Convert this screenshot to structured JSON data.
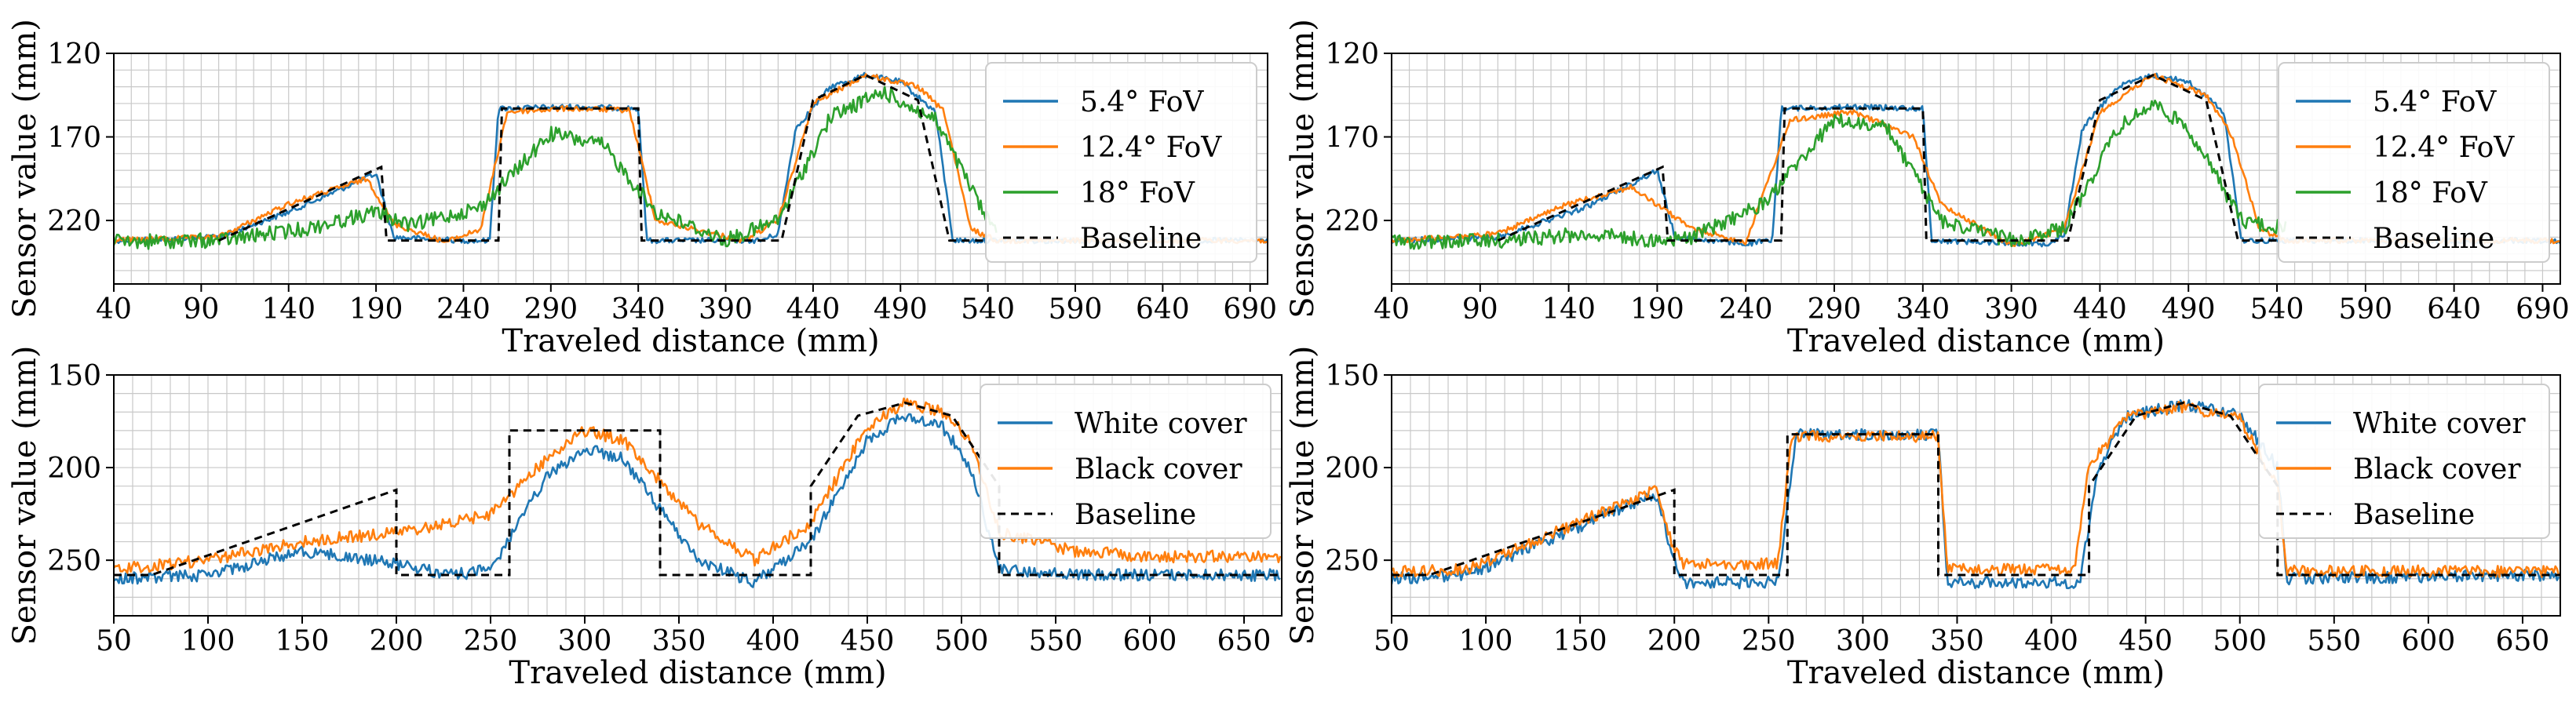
{
  "colors": {
    "blue": "#1f77b4",
    "orange": "#ff7f0e",
    "green": "#2ca02c",
    "baseline": "#000000",
    "grid": "#c8c8c8"
  },
  "chart_data": [
    {
      "type": "line",
      "xlabel": "Traveled distance (mm)",
      "ylabel": "Sensor value (mm)",
      "xlim": [
        40,
        700
      ],
      "ylim": [
        258,
        120
      ],
      "xticks": [
        "40",
        "90",
        "140",
        "190",
        "240",
        "290",
        "340",
        "390",
        "440",
        "490",
        "540",
        "590",
        "640",
        "690"
      ],
      "yticks": [
        "120",
        "170",
        "220"
      ],
      "legend": [
        "5.4° FoV",
        "12.4° FoV",
        "18° FoV",
        "Baseline"
      ],
      "series": [
        {
          "name": "5.4° FoV",
          "color": "#1f77b4",
          "x": [
            40,
            100,
            140,
            190,
            200,
            240,
            255,
            260,
            300,
            340,
            345,
            410,
            420,
            430,
            450,
            470,
            490,
            510,
            520,
            540,
            700
          ],
          "y": [
            232,
            230,
            215,
            192,
            230,
            232,
            232,
            153,
            152,
            153,
            232,
            232,
            228,
            165,
            140,
            133,
            137,
            155,
            232,
            232,
            232
          ]
        },
        {
          "name": "12.4° FoV",
          "color": "#ff7f0e",
          "x": [
            40,
            100,
            140,
            185,
            200,
            230,
            250,
            265,
            300,
            335,
            350,
            400,
            420,
            440,
            470,
            500,
            515,
            530,
            545,
            700
          ],
          "y": [
            232,
            230,
            210,
            195,
            222,
            233,
            225,
            155,
            153,
            154,
            220,
            232,
            220,
            150,
            133,
            140,
            155,
            225,
            232,
            232
          ]
        },
        {
          "name": "18° FoV",
          "color": "#2ca02c",
          "x": [
            40,
            100,
            150,
            190,
            210,
            250,
            290,
            320,
            350,
            390,
            420,
            450,
            480,
            510,
            540,
            545
          ],
          "y": [
            233,
            232,
            225,
            215,
            223,
            212,
            168,
            175,
            215,
            232,
            220,
            158,
            143,
            160,
            220,
            225
          ]
        },
        {
          "name": "Baseline",
          "color": "#000000",
          "dashed": true,
          "x": [
            100,
            193,
            196,
            260,
            262,
            340,
            342,
            420,
            422,
            440,
            470,
            500,
            518,
            520,
            540
          ],
          "y": [
            232,
            188,
            232,
            232,
            153,
            153,
            232,
            232,
            232,
            148,
            133,
            148,
            232,
            232,
            232
          ]
        }
      ]
    },
    {
      "type": "line",
      "xlabel": "Traveled distance (mm)",
      "ylabel": "Sensor value (mm)",
      "xlim": [
        40,
        700
      ],
      "ylim": [
        258,
        120
      ],
      "xticks": [
        "40",
        "90",
        "140",
        "190",
        "240",
        "290",
        "340",
        "390",
        "440",
        "490",
        "540",
        "590",
        "640",
        "690"
      ],
      "yticks": [
        "120",
        "170",
        "220"
      ],
      "legend": [
        "5.4° FoV",
        "12.4° FoV",
        "18° FoV",
        "Baseline"
      ],
      "series": [
        {
          "name": "5.4° FoV",
          "color": "#1f77b4",
          "x": [
            40,
            100,
            150,
            190,
            200,
            240,
            255,
            260,
            300,
            340,
            345,
            410,
            420,
            430,
            450,
            470,
            490,
            510,
            520,
            540,
            700
          ],
          "y": [
            232,
            230,
            212,
            190,
            230,
            234,
            232,
            153,
            152,
            153,
            232,
            234,
            228,
            165,
            140,
            133,
            137,
            155,
            232,
            232,
            232
          ]
        },
        {
          "name": "12.4° FoV",
          "color": "#ff7f0e",
          "x": [
            40,
            100,
            140,
            175,
            210,
            240,
            265,
            300,
            335,
            350,
            390,
            420,
            440,
            470,
            500,
            515,
            530,
            545,
            700
          ],
          "y": [
            232,
            228,
            210,
            200,
            225,
            233,
            160,
            155,
            170,
            210,
            235,
            225,
            155,
            133,
            145,
            170,
            225,
            232,
            232
          ]
        },
        {
          "name": "18° FoV",
          "color": "#2ca02c",
          "x": [
            40,
            100,
            150,
            190,
            210,
            250,
            290,
            320,
            350,
            390,
            420,
            450,
            470,
            490,
            520,
            545
          ],
          "y": [
            233,
            232,
            228,
            232,
            230,
            210,
            160,
            165,
            220,
            232,
            225,
            165,
            150,
            165,
            220,
            225
          ]
        },
        {
          "name": "Baseline",
          "color": "#000000",
          "dashed": true,
          "x": [
            100,
            193,
            196,
            260,
            262,
            340,
            342,
            420,
            422,
            440,
            470,
            500,
            518,
            520,
            540
          ],
          "y": [
            232,
            188,
            232,
            232,
            153,
            153,
            232,
            232,
            232,
            148,
            133,
            148,
            232,
            232,
            232
          ]
        }
      ]
    },
    {
      "type": "line",
      "xlabel": "Traveled distance (mm)",
      "ylabel": "Sensor value (mm)",
      "xlim": [
        50,
        670
      ],
      "ylim": [
        280,
        150
      ],
      "xticks": [
        "50",
        "100",
        "150",
        "200",
        "250",
        "300",
        "350",
        "400",
        "450",
        "500",
        "550",
        "600",
        "650"
      ],
      "yticks": [
        "150",
        "200",
        "250"
      ],
      "legend": [
        "White cover",
        "Black cover",
        "Baseline"
      ],
      "series": [
        {
          "name": "White cover",
          "color": "#1f77b4",
          "x": [
            50,
            100,
            150,
            200,
            230,
            250,
            280,
            300,
            320,
            360,
            390,
            420,
            450,
            470,
            490,
            505,
            520,
            560,
            600,
            670
          ],
          "y": [
            260,
            258,
            245,
            252,
            258,
            255,
            205,
            190,
            195,
            250,
            262,
            240,
            185,
            172,
            178,
            200,
            255,
            258,
            258,
            258
          ]
        },
        {
          "name": "Black cover",
          "color": "#ff7f0e",
          "x": [
            50,
            100,
            150,
            200,
            230,
            250,
            280,
            300,
            320,
            360,
            390,
            420,
            450,
            470,
            490,
            505,
            520,
            560,
            600,
            670
          ],
          "y": [
            255,
            250,
            240,
            235,
            230,
            225,
            195,
            180,
            185,
            230,
            250,
            230,
            178,
            165,
            170,
            185,
            235,
            245,
            248,
            248
          ]
        },
        {
          "name": "Baseline",
          "color": "#000000",
          "dashed": true,
          "x": [
            50,
            70,
            200,
            200,
            260,
            260,
            340,
            340,
            420,
            420,
            445,
            470,
            495,
            520,
            520,
            670
          ],
          "y": [
            258,
            258,
            212,
            258,
            258,
            180,
            180,
            258,
            258,
            210,
            172,
            165,
            172,
            210,
            258,
            258
          ]
        }
      ]
    },
    {
      "type": "line",
      "xlabel": "Traveled distance (mm)",
      "ylabel": "Sensor value (mm)",
      "xlim": [
        50,
        670
      ],
      "ylim": [
        280,
        150
      ],
      "xticks": [
        "50",
        "100",
        "150",
        "200",
        "250",
        "300",
        "350",
        "400",
        "450",
        "500",
        "550",
        "600",
        "650"
      ],
      "yticks": [
        "150",
        "200",
        "250"
      ],
      "legend": [
        "White cover",
        "Black cover",
        "Baseline"
      ],
      "series": [
        {
          "name": "White cover",
          "color": "#1f77b4",
          "x": [
            50,
            90,
            190,
            200,
            205,
            255,
            265,
            340,
            345,
            415,
            425,
            440,
            470,
            500,
            520,
            525,
            670
          ],
          "y": [
            260,
            258,
            214,
            250,
            262,
            262,
            182,
            182,
            262,
            262,
            200,
            172,
            166,
            172,
            200,
            260,
            258
          ]
        },
        {
          "name": "Black cover",
          "color": "#ff7f0e",
          "x": [
            50,
            90,
            190,
            200,
            205,
            255,
            262,
            340,
            345,
            412,
            420,
            440,
            470,
            500,
            520,
            525,
            670
          ],
          "y": [
            256,
            255,
            212,
            245,
            252,
            252,
            183,
            183,
            255,
            255,
            200,
            173,
            167,
            174,
            210,
            256,
            256
          ]
        },
        {
          "name": "Baseline",
          "color": "#000000",
          "dashed": true,
          "x": [
            50,
            70,
            200,
            200,
            260,
            260,
            340,
            340,
            420,
            420,
            445,
            470,
            495,
            520,
            520,
            670
          ],
          "y": [
            258,
            258,
            212,
            258,
            258,
            182,
            182,
            258,
            258,
            210,
            172,
            165,
            172,
            210,
            258,
            258
          ]
        }
      ]
    }
  ]
}
